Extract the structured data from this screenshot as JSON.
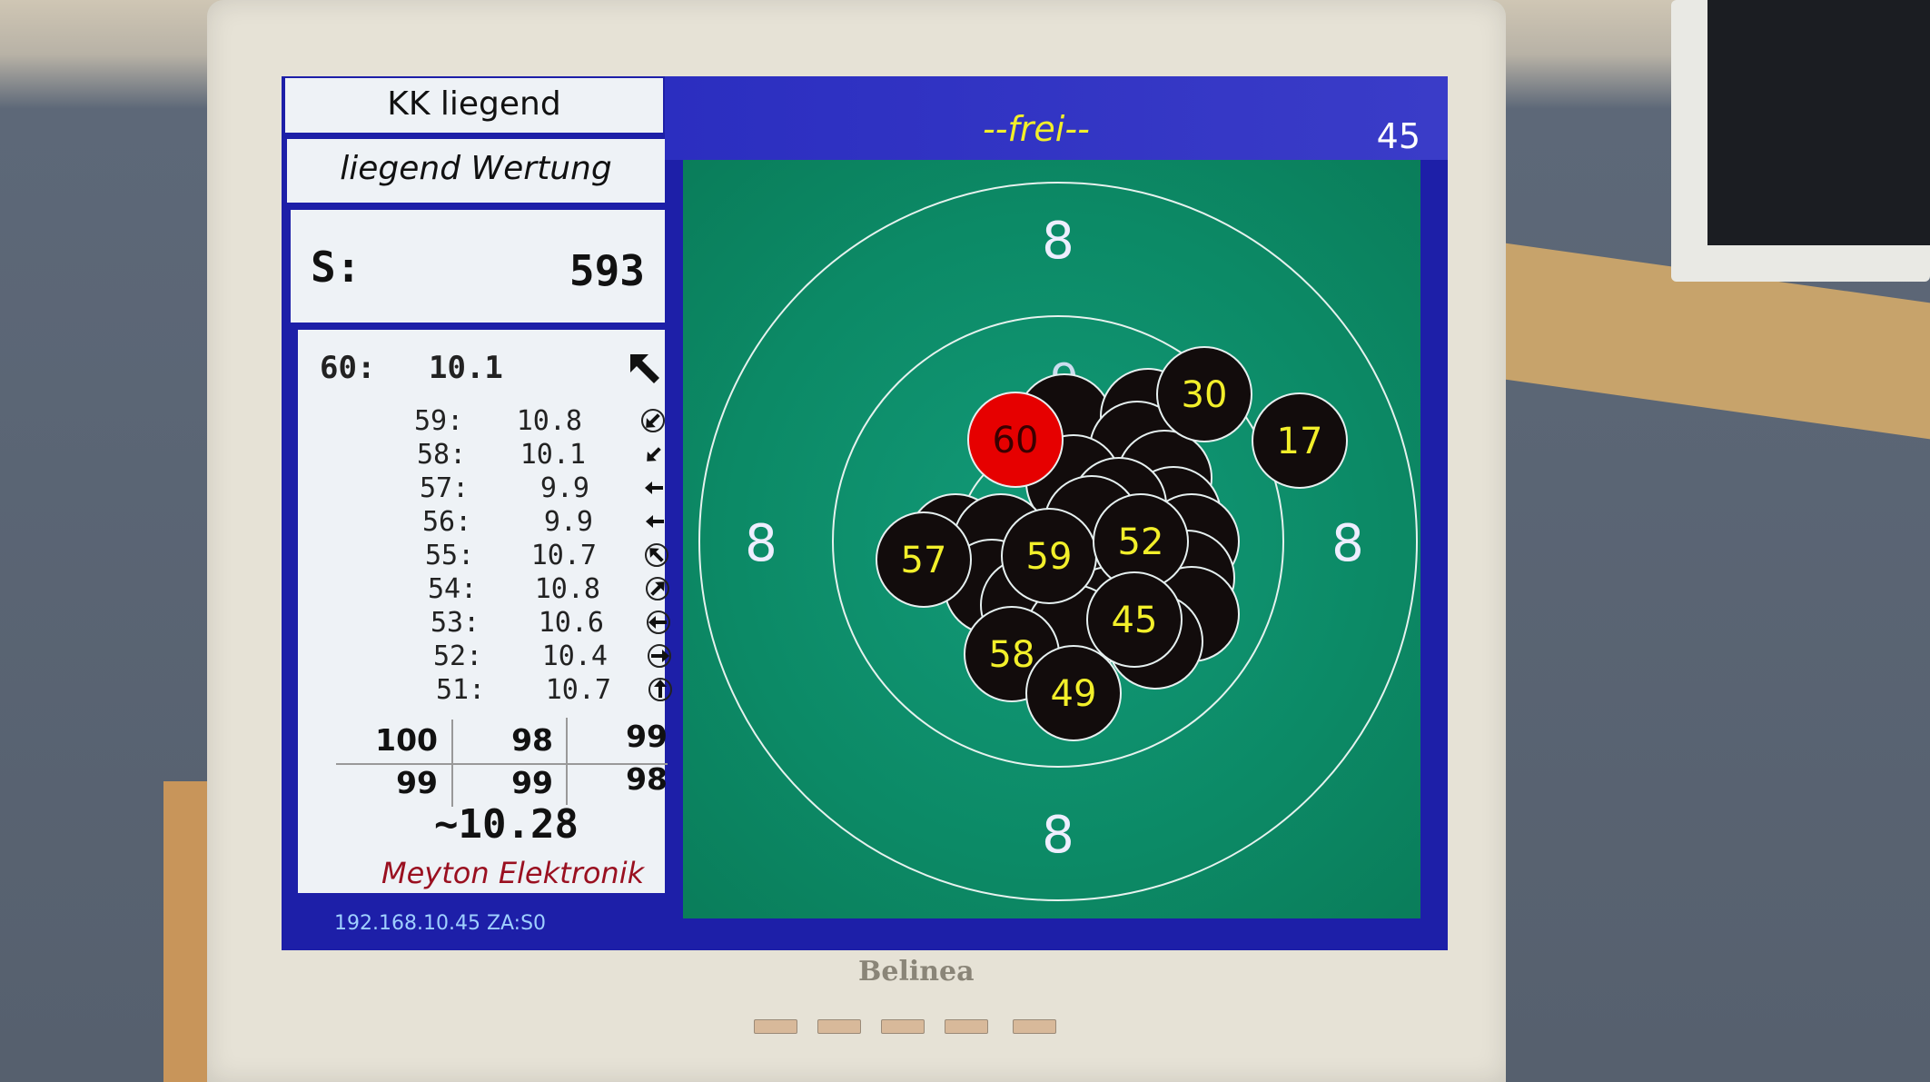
{
  "left_panel": {
    "discipline": "KK liegend",
    "scoring": "liegend Wertung",
    "sum_label": "S:",
    "sum_value": "593",
    "current_shot": {
      "label": "60:",
      "value": "10.1",
      "icon": "arrow-up-left-icon"
    },
    "shots": [
      {
        "label": "59:",
        "value": "10.8",
        "icon": "circled-arrow-down-left-icon"
      },
      {
        "label": "58:",
        "value": "10.1",
        "icon": "arrow-down-left-icon"
      },
      {
        "label": "57:",
        "value": "9.9",
        "icon": "arrow-left-icon"
      },
      {
        "label": "56:",
        "value": "9.9",
        "icon": "arrow-left-icon"
      },
      {
        "label": "55:",
        "value": "10.7",
        "icon": "circled-arrow-up-left-icon"
      },
      {
        "label": "54:",
        "value": "10.8",
        "icon": "circled-arrow-up-right-icon"
      },
      {
        "label": "53:",
        "value": "10.6",
        "icon": "circled-arrow-left-icon"
      },
      {
        "label": "52:",
        "value": "10.4",
        "icon": "circled-arrow-right-icon"
      },
      {
        "label": "51:",
        "value": "10.7",
        "icon": "circled-arrow-up-icon"
      }
    ],
    "series_scores": [
      [
        "100",
        "98",
        "99"
      ],
      [
        "99",
        "99",
        "98"
      ]
    ],
    "average": "~10.28",
    "brand": "Meyton Elektronik"
  },
  "status_bar": {
    "text": "192.168.10.45 ZA:S0"
  },
  "target_view": {
    "status": "--frei--",
    "lane": "45",
    "ring_labels": {
      "top": "8",
      "left": "8",
      "right": "8",
      "bottom": "8",
      "inner": "9"
    },
    "visible_shot_numbers": [
      "60",
      "30",
      "17",
      "57",
      "59",
      "52",
      "45",
      "58",
      "49"
    ],
    "latest_shot": "60"
  },
  "monitor": {
    "brand": "Belinea"
  },
  "colors": {
    "panel_blue": "#1d1fa8",
    "target_green": "#0c8a66",
    "shot_black": "#120c0c",
    "latest_shot_red": "#e60000",
    "shot_number_yellow": "#f2ef2a",
    "status_yellow": "#f2ef2a",
    "brand_red": "#9a1020"
  }
}
